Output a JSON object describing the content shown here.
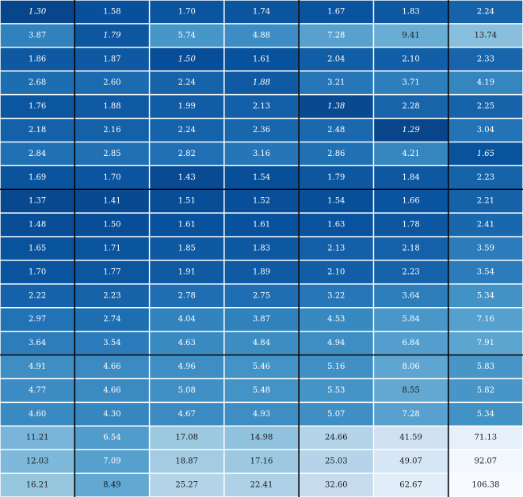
{
  "chart_data": {
    "type": "heatmap",
    "title": "",
    "xlabel": "",
    "ylabel": "",
    "colormap": "Blues",
    "color_scale": "log",
    "color_range": [
      1.29,
      106.38
    ],
    "columns": 7,
    "row_group_boundaries_after": [
      8,
      15
    ],
    "column_group_boundaries_after": [
      1,
      4,
      6
    ],
    "values": [
      [
        1.3,
        1.58,
        1.7,
        1.74,
        1.67,
        1.83,
        2.24
      ],
      [
        3.87,
        1.79,
        5.74,
        4.88,
        7.28,
        9.41,
        13.74
      ],
      [
        1.86,
        1.87,
        1.5,
        1.61,
        2.04,
        2.1,
        2.33
      ],
      [
        2.68,
        2.6,
        2.24,
        1.88,
        3.21,
        3.71,
        4.19
      ],
      [
        1.76,
        1.88,
        1.99,
        2.13,
        1.38,
        2.28,
        2.25
      ],
      [
        2.18,
        2.16,
        2.24,
        2.36,
        2.48,
        1.29,
        3.04
      ],
      [
        2.84,
        2.85,
        2.82,
        3.16,
        2.86,
        4.21,
        1.65
      ],
      [
        1.69,
        1.7,
        1.43,
        1.54,
        1.79,
        1.84,
        2.23
      ],
      [
        1.37,
        1.41,
        1.51,
        1.52,
        1.54,
        1.66,
        2.21
      ],
      [
        1.48,
        1.5,
        1.61,
        1.61,
        1.63,
        1.78,
        2.41
      ],
      [
        1.65,
        1.71,
        1.85,
        1.83,
        2.13,
        2.18,
        3.59
      ],
      [
        1.7,
        1.77,
        1.91,
        1.89,
        2.1,
        2.23,
        3.54
      ],
      [
        2.22,
        2.23,
        2.78,
        2.75,
        3.22,
        3.64,
        5.34
      ],
      [
        2.97,
        2.74,
        4.04,
        3.87,
        4.53,
        5.84,
        7.16
      ],
      [
        3.64,
        3.54,
        4.63,
        4.84,
        4.94,
        6.84,
        7.91
      ],
      [
        4.91,
        4.66,
        4.96,
        5.46,
        5.16,
        8.06,
        5.83
      ],
      [
        4.77,
        4.66,
        5.08,
        5.48,
        5.53,
        8.55,
        5.82
      ],
      [
        4.6,
        4.3,
        4.67,
        4.93,
        5.07,
        7.28,
        5.34
      ],
      [
        11.21,
        6.54,
        17.08,
        14.98,
        24.66,
        41.59,
        71.13
      ],
      [
        12.03,
        7.09,
        18.87,
        17.16,
        25.03,
        49.07,
        92.07
      ],
      [
        16.21,
        8.49,
        25.27,
        22.41,
        32.6,
        62.67,
        106.38
      ]
    ],
    "labels": [
      [
        "1.30",
        "1.58",
        "1.70",
        "1.74",
        "1.67",
        "1.83",
        "2.24"
      ],
      [
        "3.87",
        "1.79",
        "5.74",
        "4.88",
        "7.28",
        "9.41",
        "13.74"
      ],
      [
        "1.86",
        "1.87",
        "1.50",
        "1.61",
        "2.04",
        "2.10",
        "2.33"
      ],
      [
        "2.68",
        "2.60",
        "2.24",
        "1.88",
        "3.21",
        "3.71",
        "4.19"
      ],
      [
        "1.76",
        "1.88",
        "1.99",
        "2.13",
        "1.38",
        "2.28",
        "2.25"
      ],
      [
        "2.18",
        "2.16",
        "2.24",
        "2.36",
        "2.48",
        "1.29",
        "3.04"
      ],
      [
        "2.84",
        "2.85",
        "2.82",
        "3.16",
        "2.86",
        "4.21",
        "1.65"
      ],
      [
        "1.69",
        "1.70",
        "1.43",
        "1.54",
        "1.79",
        "1.84",
        "2.23"
      ],
      [
        "1.37",
        "1.41",
        "1.51",
        "1.52",
        "1.54",
        "1.66",
        "2.21"
      ],
      [
        "1.48",
        "1.50",
        "1.61",
        "1.61",
        "1.63",
        "1.78",
        "2.41"
      ],
      [
        "1.65",
        "1.71",
        "1.85",
        "1.83",
        "2.13",
        "2.18",
        "3.59"
      ],
      [
        "1.70",
        "1.77",
        "1.91",
        "1.89",
        "2.10",
        "2.23",
        "3.54"
      ],
      [
        "2.22",
        "2.23",
        "2.78",
        "2.75",
        "3.22",
        "3.64",
        "5.34"
      ],
      [
        "2.97",
        "2.74",
        "4.04",
        "3.87",
        "4.53",
        "5.84",
        "7.16"
      ],
      [
        "3.64",
        "3.54",
        "4.63",
        "4.84",
        "4.94",
        "6.84",
        "7.91"
      ],
      [
        "4.91",
        "4.66",
        "4.96",
        "5.46",
        "5.16",
        "8.06",
        "5.83"
      ],
      [
        "4.77",
        "4.66",
        "5.08",
        "5.48",
        "5.53",
        "8.55",
        "5.82"
      ],
      [
        "4.60",
        "4.30",
        "4.67",
        "4.93",
        "5.07",
        "7.28",
        "5.34"
      ],
      [
        "11.21",
        "6.54",
        "17.08",
        "14.98",
        "24.66",
        "41.59",
        "71.13"
      ],
      [
        "12.03",
        "7.09",
        "18.87",
        "17.16",
        "25.03",
        "49.07",
        "92.07"
      ],
      [
        "16.21",
        "8.49",
        "25.27",
        "22.41",
        "32.60",
        "62.67",
        "106.38"
      ]
    ],
    "italic_cells": [
      [
        0,
        0
      ],
      [
        1,
        1
      ],
      [
        2,
        2
      ],
      [
        3,
        3
      ],
      [
        4,
        4
      ],
      [
        5,
        5
      ],
      [
        6,
        6
      ]
    ],
    "grid": false,
    "legend": "none"
  }
}
